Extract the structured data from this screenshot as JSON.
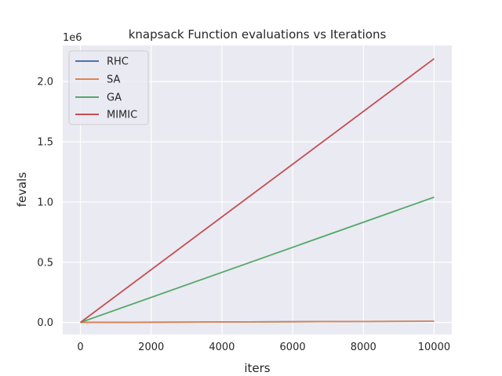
{
  "chart_data": {
    "type": "line",
    "title": "knapsack Function evaluations vs Iterations",
    "xlabel": "iters",
    "ylabel": "fevals",
    "y_offset_label": "1e6",
    "xlim": [
      -500,
      10500
    ],
    "ylim": [
      -100000,
      2300000
    ],
    "x_ticks": [
      0,
      2000,
      4000,
      6000,
      8000,
      10000
    ],
    "x_tick_labels": [
      "0",
      "2000",
      "4000",
      "6000",
      "8000",
      "10000"
    ],
    "y_ticks": [
      0,
      500000,
      1000000,
      1500000,
      2000000
    ],
    "y_tick_labels": [
      "0.0",
      "0.5",
      "1.0",
      "1.5",
      "2.0"
    ],
    "grid": true,
    "legend_position": "upper-left",
    "x": [
      0,
      10000
    ],
    "series": [
      {
        "name": "RHC",
        "color": "#4c72b0",
        "values": [
          0,
          10000
        ]
      },
      {
        "name": "SA",
        "color": "#dd8452",
        "values": [
          0,
          10000
        ]
      },
      {
        "name": "GA",
        "color": "#55a868",
        "values": [
          0,
          1040000
        ]
      },
      {
        "name": "MIMIC",
        "color": "#c44e52",
        "values": [
          0,
          2190000
        ]
      }
    ]
  }
}
